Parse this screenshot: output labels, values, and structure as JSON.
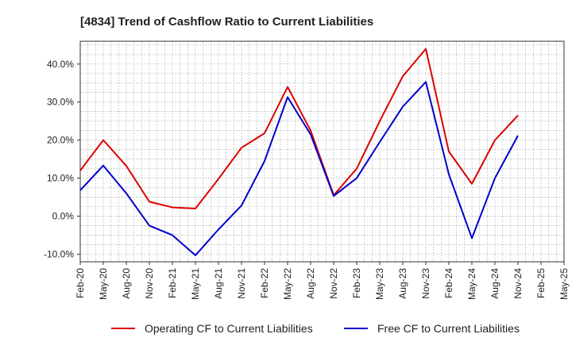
{
  "chart_data": {
    "type": "line",
    "title": "[4834]  Trend of Cashflow Ratio to Current Liabilities",
    "xlabel": "",
    "ylabel": "",
    "ylim": [
      -12,
      46
    ],
    "y_ticks": [
      -10,
      0,
      10,
      20,
      30,
      40
    ],
    "y_tick_labels": [
      "-10.0%",
      "0.0%",
      "10.0%",
      "20.0%",
      "30.0%",
      "40.0%"
    ],
    "x_tick_labels": [
      "Feb-20",
      "May-20",
      "Aug-20",
      "Nov-20",
      "Feb-21",
      "May-21",
      "Aug-21",
      "Nov-21",
      "Feb-22",
      "May-22",
      "Aug-22",
      "Nov-22",
      "Feb-23",
      "May-23",
      "Aug-23",
      "Nov-23",
      "Feb-24",
      "May-24",
      "Aug-24",
      "Nov-24",
      "Feb-25",
      "May-25"
    ],
    "x": [
      "Feb-20",
      "Mar-20",
      "Apr-20",
      "May-20",
      "Jun-20",
      "Jul-20",
      "Aug-20",
      "Sep-20",
      "Oct-20",
      "Nov-20",
      "Dec-20",
      "Jan-21",
      "Feb-21",
      "Mar-21",
      "Apr-21",
      "May-21",
      "Jun-21",
      "Jul-21",
      "Aug-21",
      "Sep-21",
      "Oct-21",
      "Nov-21",
      "Dec-21",
      "Jan-22",
      "Feb-22",
      "Mar-22",
      "Apr-22",
      "May-22",
      "Jun-22",
      "Jul-22",
      "Aug-22",
      "Sep-22",
      "Oct-22",
      "Nov-22",
      "Dec-22",
      "Jan-23",
      "Feb-23",
      "Mar-23",
      "Apr-23",
      "May-23",
      "Jun-23",
      "Jul-23",
      "Aug-23",
      "Sep-23",
      "Oct-23",
      "Nov-23",
      "Dec-23",
      "Jan-24",
      "Feb-24",
      "Mar-24",
      "Apr-24",
      "May-24",
      "Jun-24",
      "Jul-24",
      "Aug-24",
      "Sep-24",
      "Oct-24",
      "Nov-24",
      "Dec-24",
      "Jan-25",
      "Feb-25",
      "Mar-25",
      "Apr-25",
      "May-25"
    ],
    "grid": true,
    "legend_position": "bottom",
    "series": [
      {
        "name": "Operating CF to Current Liabilities",
        "color": "#dd0000",
        "values": [
          12.0,
          null,
          null,
          20.0,
          null,
          null,
          13.2,
          null,
          null,
          3.8,
          null,
          null,
          2.3,
          null,
          null,
          2.0,
          null,
          null,
          9.8,
          null,
          null,
          18.0,
          null,
          null,
          21.8,
          null,
          null,
          34.0,
          null,
          null,
          22.5,
          null,
          null,
          5.5,
          null,
          null,
          12.5,
          null,
          null,
          25.0,
          null,
          null,
          36.8,
          null,
          null,
          44.0,
          null,
          null,
          17.0,
          null,
          null,
          8.5,
          null,
          null,
          20.0,
          null,
          null,
          26.5,
          null,
          null,
          null,
          null,
          null,
          null
        ]
      },
      {
        "name": "Free CF to Current Liabilities",
        "color": "#0000cc",
        "values": [
          6.8,
          null,
          null,
          13.3,
          null,
          null,
          6.0,
          null,
          null,
          -2.5,
          null,
          null,
          -5.0,
          null,
          null,
          -10.3,
          null,
          null,
          -3.5,
          null,
          null,
          2.8,
          null,
          null,
          14.5,
          null,
          null,
          31.3,
          null,
          null,
          21.5,
          null,
          null,
          5.3,
          null,
          null,
          10.0,
          null,
          null,
          19.5,
          null,
          null,
          28.8,
          null,
          null,
          35.3,
          null,
          null,
          11.0,
          null,
          null,
          -5.8,
          null,
          null,
          10.0,
          null,
          null,
          21.2,
          null,
          null,
          null,
          null,
          null,
          null
        ]
      }
    ]
  }
}
